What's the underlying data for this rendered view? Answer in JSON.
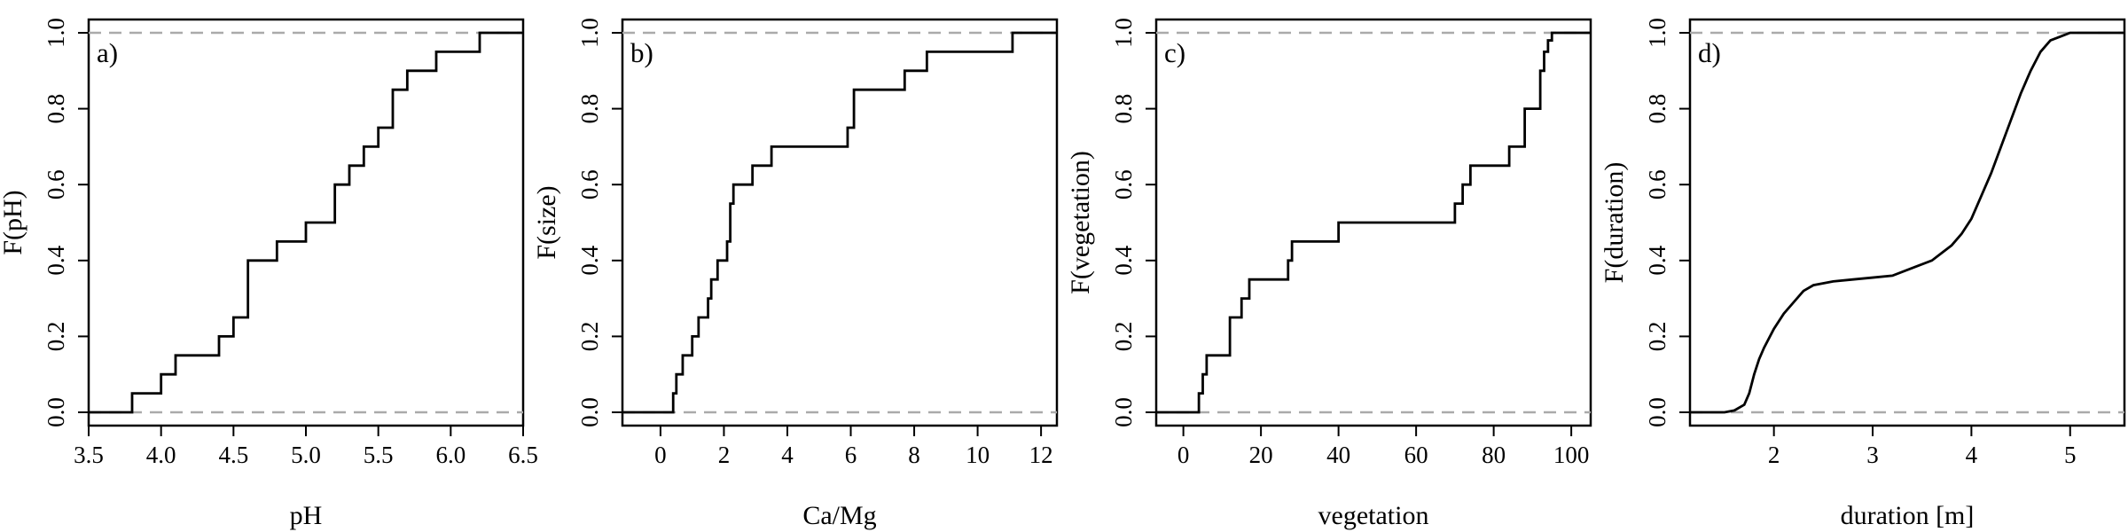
{
  "chart_data": [
    {
      "type": "line",
      "panel": "a)",
      "xlabel": "pH",
      "ylabel": "F(pH)",
      "xlim": [
        3.5,
        6.5
      ],
      "ylim": [
        0,
        1
      ],
      "xticks": [
        3.5,
        4.0,
        4.5,
        5.0,
        5.5,
        6.0,
        6.5
      ],
      "xtick_labels": [
        "3.5",
        "4.0",
        "4.5",
        "5.0",
        "5.5",
        "6.0",
        "6.5"
      ],
      "yticks": [
        0,
        0.2,
        0.4,
        0.6,
        0.8,
        1.0
      ],
      "ytick_labels": [
        "0.0",
        "0.2",
        "0.4",
        "0.6",
        "0.8",
        "1.0"
      ],
      "reference_lines": [
        0,
        1
      ],
      "step": {
        "x": [
          3.8,
          3.9,
          4.0,
          4.1,
          4.2,
          4.3,
          4.4,
          4.5,
          4.6,
          4.7,
          4.8,
          5.0,
          5.2,
          5.3,
          5.4,
          5.5,
          5.6,
          5.7,
          5.9,
          6.2
        ],
        "y": [
          0.05,
          0.05,
          0.1,
          0.15,
          0.15,
          0.15,
          0.2,
          0.25,
          0.4,
          0.4,
          0.45,
          0.5,
          0.6,
          0.65,
          0.7,
          0.75,
          0.85,
          0.9,
          0.95,
          1.0
        ]
      }
    },
    {
      "type": "line",
      "panel": "b)",
      "xlabel": "Ca/Mg",
      "ylabel": "F(size)",
      "xlim": [
        -1.2,
        12.5
      ],
      "ylim": [
        0,
        1
      ],
      "xticks": [
        0,
        2,
        4,
        6,
        8,
        10,
        12
      ],
      "xtick_labels": [
        "0",
        "2",
        "4",
        "6",
        "8",
        "10",
        "12"
      ],
      "yticks": [
        0,
        0.2,
        0.4,
        0.6,
        0.8,
        1.0
      ],
      "ytick_labels": [
        "0.0",
        "0.2",
        "0.4",
        "0.6",
        "0.8",
        "1.0"
      ],
      "reference_lines": [
        0,
        1
      ],
      "step": {
        "x": [
          0.4,
          0.5,
          0.7,
          1.0,
          1.2,
          1.5,
          1.6,
          1.8,
          2.1,
          2.2,
          2.3,
          2.9,
          3.5,
          5.9,
          6.1,
          7.7,
          8.4,
          11.1
        ],
        "y": [
          0.05,
          0.1,
          0.15,
          0.2,
          0.25,
          0.3,
          0.35,
          0.4,
          0.45,
          0.55,
          0.6,
          0.65,
          0.7,
          0.75,
          0.85,
          0.9,
          0.95,
          1.0
        ]
      }
    },
    {
      "type": "line",
      "panel": "c)",
      "xlabel": "vegetation",
      "ylabel": "F(vegetation)",
      "xlim": [
        -7,
        105
      ],
      "ylim": [
        0,
        1
      ],
      "xticks": [
        0,
        20,
        40,
        60,
        80,
        100
      ],
      "xtick_labels": [
        "0",
        "20",
        "40",
        "60",
        "80",
        "100"
      ],
      "yticks": [
        0,
        0.2,
        0.4,
        0.6,
        0.8,
        1.0
      ],
      "ytick_labels": [
        "0.0",
        "0.2",
        "0.4",
        "0.6",
        "0.8",
        "1.0"
      ],
      "reference_lines": [
        0,
        1
      ],
      "step": {
        "x": [
          4,
          5,
          6,
          12,
          15,
          17,
          27,
          28,
          40,
          70,
          72,
          74,
          84,
          88,
          92,
          93,
          94,
          95
        ],
        "y": [
          0.05,
          0.1,
          0.15,
          0.25,
          0.3,
          0.35,
          0.4,
          0.45,
          0.5,
          0.55,
          0.6,
          0.65,
          0.7,
          0.8,
          0.9,
          0.95,
          0.98,
          1.0
        ]
      }
    },
    {
      "type": "line",
      "panel": "d)",
      "xlabel": "duration [m]",
      "ylabel": "F(duration)",
      "xlim": [
        1.15,
        5.55
      ],
      "ylim": [
        0,
        1
      ],
      "xticks": [
        2,
        3,
        4,
        5
      ],
      "xtick_labels": [
        "2",
        "3",
        "4",
        "5"
      ],
      "yticks": [
        0,
        0.2,
        0.4,
        0.6,
        0.8,
        1.0
      ],
      "ytick_labels": [
        "0.0",
        "0.2",
        "0.4",
        "0.6",
        "0.8",
        "1.0"
      ],
      "reference_lines": [
        0,
        1
      ],
      "curve": {
        "x": [
          1.5,
          1.6,
          1.7,
          1.75,
          1.8,
          1.85,
          1.9,
          2.0,
          2.1,
          2.2,
          2.3,
          2.4,
          2.5,
          2.6,
          2.8,
          3.0,
          3.2,
          3.4,
          3.6,
          3.7,
          3.8,
          3.9,
          4.0,
          4.1,
          4.2,
          4.3,
          4.4,
          4.5,
          4.6,
          4.7,
          4.8,
          4.9,
          5.0,
          5.1,
          5.2
        ],
        "y": [
          0.0,
          0.005,
          0.02,
          0.05,
          0.1,
          0.14,
          0.17,
          0.22,
          0.26,
          0.29,
          0.32,
          0.335,
          0.34,
          0.345,
          0.35,
          0.355,
          0.36,
          0.38,
          0.4,
          0.42,
          0.44,
          0.47,
          0.51,
          0.57,
          0.63,
          0.7,
          0.77,
          0.84,
          0.9,
          0.95,
          0.98,
          0.99,
          1.0,
          1.0,
          1.0
        ]
      }
    }
  ]
}
